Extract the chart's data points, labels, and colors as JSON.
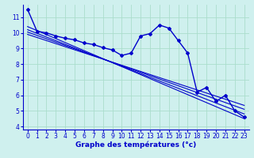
{
  "xlabel": "Graphe des températures (°c)",
  "bg_color": "#cff0ee",
  "line_color": "#0000cc",
  "grid_color": "#aaddcc",
  "xlim": [
    -0.5,
    23.5
  ],
  "ylim": [
    3.8,
    11.8
  ],
  "yticks": [
    4,
    5,
    6,
    7,
    8,
    9,
    10,
    11
  ],
  "xticks": [
    0,
    1,
    2,
    3,
    4,
    5,
    6,
    7,
    8,
    9,
    10,
    11,
    12,
    13,
    14,
    15,
    16,
    17,
    18,
    19,
    20,
    21,
    22,
    23
  ],
  "main_x": [
    0,
    1,
    2,
    3,
    4,
    5,
    6,
    7,
    8,
    9,
    10,
    11,
    12,
    13,
    14,
    15,
    16,
    17,
    18,
    19,
    20,
    21,
    22,
    23
  ],
  "main_y": [
    11.5,
    10.1,
    10.0,
    9.8,
    9.65,
    9.55,
    9.35,
    9.25,
    9.05,
    8.9,
    8.55,
    8.7,
    9.8,
    9.95,
    10.5,
    10.3,
    9.5,
    8.7,
    6.2,
    6.5,
    5.6,
    6.0,
    5.0,
    4.6
  ],
  "reg_lines": [
    [
      10.4,
      4.5
    ],
    [
      10.2,
      4.8
    ],
    [
      10.05,
      5.1
    ],
    [
      9.9,
      5.35
    ]
  ]
}
